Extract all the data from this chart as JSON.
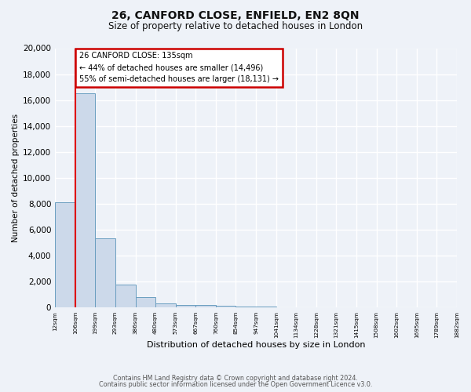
{
  "title": "26, CANFORD CLOSE, ENFIELD, EN2 8QN",
  "subtitle": "Size of property relative to detached houses in London",
  "xlabel": "Distribution of detached houses by size in London",
  "ylabel": "Number of detached properties",
  "bar_color": "#ccd9ea",
  "bar_edge_color": "#6a9ec0",
  "bar_heights": [
    8100,
    16500,
    5300,
    1750,
    800,
    300,
    200,
    180,
    120,
    60,
    40,
    30,
    20,
    15,
    10,
    8,
    5,
    3,
    2
  ],
  "bin_labels": [
    "12sqm",
    "106sqm",
    "199sqm",
    "293sqm",
    "386sqm",
    "480sqm",
    "573sqm",
    "667sqm",
    "760sqm",
    "854sqm",
    "947sqm",
    "1041sqm",
    "1134sqm",
    "1228sqm",
    "1321sqm",
    "1415sqm",
    "1508sqm",
    "1602sqm",
    "1695sqm",
    "1789sqm",
    "1882sqm"
  ],
  "ylim": [
    0,
    20000
  ],
  "yticks": [
    0,
    2000,
    4000,
    6000,
    8000,
    10000,
    12000,
    14000,
    16000,
    18000,
    20000
  ],
  "red_line_x": 1,
  "annotation_title": "26 CANFORD CLOSE: 135sqm",
  "annotation_line1": "← 44% of detached houses are smaller (14,496)",
  "annotation_line2": "55% of semi-detached houses are larger (18,131) →",
  "annotation_box_color": "#ffffff",
  "annotation_box_edge": "#cc0000",
  "footer1": "Contains HM Land Registry data © Crown copyright and database right 2024.",
  "footer2": "Contains public sector information licensed under the Open Government Licence v3.0.",
  "bg_color": "#eef2f8",
  "plot_bg_color": "#eef2f8",
  "grid_color": "#ffffff"
}
